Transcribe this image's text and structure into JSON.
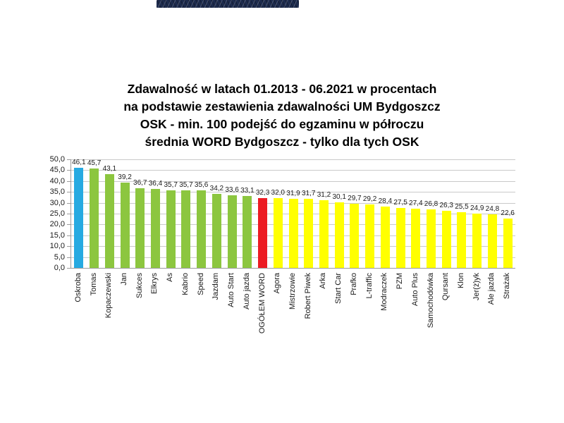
{
  "title": {
    "lines": [
      "Zdawalność w latach 01.2013 - 06.2021 w procentach",
      "na podstawie zestawienia zdawalności UM Bydgoszcz",
      "OSK - min. 100 podejść do egzaminu w półroczu",
      "średnia WORD Bydgoszcz - tylko dla tych OSK"
    ]
  },
  "decorations": {
    "redacted_banner_color": "#1d2b4d"
  },
  "chart_data": {
    "type": "bar",
    "title": "Zdawalność w latach 01.2013 - 06.2021 w procentach na podstawie zestawienia zdawalności UM Bydgoszcz OSK - min. 100 podejść do egzaminu w półroczu średnia WORD Bydgoszcz - tylko dla tych OSK",
    "xlabel": "",
    "ylabel": "",
    "ylim": [
      0,
      50
    ],
    "ytick_step": 5,
    "ytick_labels": [
      "0,0",
      "5,0",
      "10,0",
      "15,0",
      "20,0",
      "25,0",
      "30,0",
      "35,0",
      "40,0",
      "45,0",
      "50,0"
    ],
    "grid": true,
    "legend_position": "none",
    "decimal_separator": ",",
    "categories": [
      "Oskroba",
      "Tomas",
      "Kopaczewski",
      "Jan",
      "Sukces",
      "Elkrys",
      "As",
      "Kabrio",
      "Speed",
      "Jazdam",
      "Auto Start",
      "Auto jazda",
      "OGÓŁEM WORD",
      "Agora",
      "Mistrzowie",
      "Robert Piwek",
      "Arka",
      "Start Car",
      "Prafko",
      "L-traffic",
      "Modraczek",
      "PZM",
      "Auto Plus",
      "Samochodówka",
      "Qursant",
      "Klon",
      "Jer(ż)yk",
      "Ale jazda",
      "Strażak"
    ],
    "values": [
      46.1,
      45.7,
      43.1,
      39.2,
      36.7,
      36.4,
      35.7,
      35.7,
      35.6,
      34.2,
      33.6,
      33.1,
      32.3,
      32.0,
      31.9,
      31.7,
      31.2,
      30.1,
      29.7,
      29.2,
      28.4,
      27.5,
      27.4,
      26.8,
      26.3,
      25.5,
      24.9,
      24.8,
      22.6
    ],
    "value_labels": [
      "46,1",
      "45,7",
      "43,1",
      "39,2",
      "36,7",
      "36,4",
      "35,7",
      "35,7",
      "35,6",
      "34,2",
      "33,6",
      "33,1",
      "32,3",
      "32,0",
      "31,9",
      "31,7",
      "31,2",
      "30,1",
      "29,7",
      "29,2",
      "28,4",
      "27,5",
      "27,4",
      "26,8",
      "26,3",
      "25,5",
      "24,9",
      "24,8",
      "22,6"
    ],
    "bar_colors": [
      "#27AAE1",
      "#8CC63F",
      "#8CC63F",
      "#8CC63F",
      "#8CC63F",
      "#8CC63F",
      "#8CC63F",
      "#8CC63F",
      "#8CC63F",
      "#8CC63F",
      "#8CC63F",
      "#8CC63F",
      "#EC1B23",
      "#FFFF00",
      "#FFFF00",
      "#FFFF00",
      "#FFFF00",
      "#FFFF00",
      "#FFFF00",
      "#FFFF00",
      "#FFFF00",
      "#FFFF00",
      "#FFFF00",
      "#FFFF00",
      "#FFFF00",
      "#FFFF00",
      "#FFFF00",
      "#FFFF00",
      "#FFFF00"
    ],
    "palette": {
      "first_bar": "#27AAE1",
      "above_average": "#8CC63F",
      "word_average": "#EC1B23",
      "below_average": "#FFFF00",
      "gridline": "#c9c9c9",
      "axis": "#9b9b9b"
    }
  }
}
